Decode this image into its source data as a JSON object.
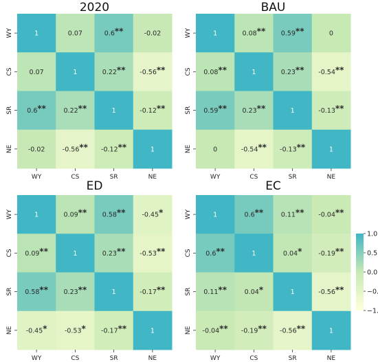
{
  "chart_data": [
    {
      "type": "heatmap",
      "title": "2020",
      "labels": [
        "WY",
        "CS",
        "SR",
        "NE"
      ],
      "values": [
        [
          1,
          0.07,
          0.6,
          -0.02
        ],
        [
          0.07,
          1,
          0.22,
          -0.56
        ],
        [
          0.6,
          0.22,
          1,
          -0.12
        ],
        [
          -0.02,
          -0.56,
          -0.12,
          1
        ]
      ],
      "cell_labels": [
        [
          "1",
          "0.07",
          "0.6**",
          "-0.02"
        ],
        [
          "0.07",
          "1",
          "0.22**",
          "-0.56**"
        ],
        [
          "0.6**",
          "0.22**",
          "1",
          "-0.12**"
        ],
        [
          "-0.02",
          "-0.56**",
          "-0.12**",
          "1"
        ]
      ]
    },
    {
      "type": "heatmap",
      "title": "BAU",
      "labels": [
        "WY",
        "CS",
        "SR",
        "NE"
      ],
      "values": [
        [
          1,
          0.08,
          0.59,
          0
        ],
        [
          0.08,
          1,
          0.23,
          -0.54
        ],
        [
          0.59,
          0.23,
          1,
          -0.13
        ],
        [
          0,
          -0.54,
          -0.13,
          1
        ]
      ],
      "cell_labels": [
        [
          "1",
          "0.08**",
          "0.59**",
          "0"
        ],
        [
          "0.08**",
          "1",
          "0.23**",
          "-0.54**"
        ],
        [
          "0.59**",
          "0.23**",
          "1",
          "-0.13**"
        ],
        [
          "0",
          "-0.54**",
          "-0.13**",
          "1"
        ]
      ]
    },
    {
      "type": "heatmap",
      "title": "ED",
      "labels": [
        "WY",
        "CS",
        "SR",
        "NE"
      ],
      "values": [
        [
          1,
          0.09,
          0.58,
          -0.45
        ],
        [
          0.09,
          1,
          0.23,
          -0.53
        ],
        [
          0.58,
          0.23,
          1,
          -0.17
        ],
        [
          -0.45,
          -0.53,
          -0.17,
          1
        ]
      ],
      "cell_labels": [
        [
          "1",
          "0.09**",
          "0.58**",
          "-0.45*"
        ],
        [
          "0.09**",
          "1",
          "0.23**",
          "-0.53**"
        ],
        [
          "0.58**",
          "0.23**",
          "1",
          "-0.17**"
        ],
        [
          "-0.45*",
          "-0.53*",
          "-0.17**",
          "1"
        ]
      ]
    },
    {
      "type": "heatmap",
      "title": "EC",
      "labels": [
        "WY",
        "CS",
        "SR",
        "NE"
      ],
      "values": [
        [
          1,
          0.6,
          0.11,
          -0.04
        ],
        [
          0.6,
          1,
          0.04,
          -0.19
        ],
        [
          0.11,
          0.04,
          1,
          -0.56
        ],
        [
          -0.04,
          -0.19,
          -0.56,
          1
        ]
      ],
      "cell_labels": [
        [
          "1",
          "0.6**",
          "0.11**",
          "-0.04**"
        ],
        [
          "0.6**",
          "1",
          "0.04*",
          "-0.19**"
        ],
        [
          "0.11**",
          "0.04*",
          "1",
          "-0.56**"
        ],
        [
          "-0.04**",
          "-0.19**",
          "-0.56**",
          "1"
        ]
      ]
    }
  ],
  "colorbar": {
    "range": [
      -1,
      1
    ],
    "tick_values": [
      1,
      0.5,
      0,
      -0.5,
      -1
    ],
    "tick_labels": [
      "1.0",
      "0.5",
      "0.0",
      "−0.5",
      "−1.0"
    ],
    "colors": [
      "#ffffd9",
      "#c7e9b4",
      "#41b6c4"
    ]
  }
}
